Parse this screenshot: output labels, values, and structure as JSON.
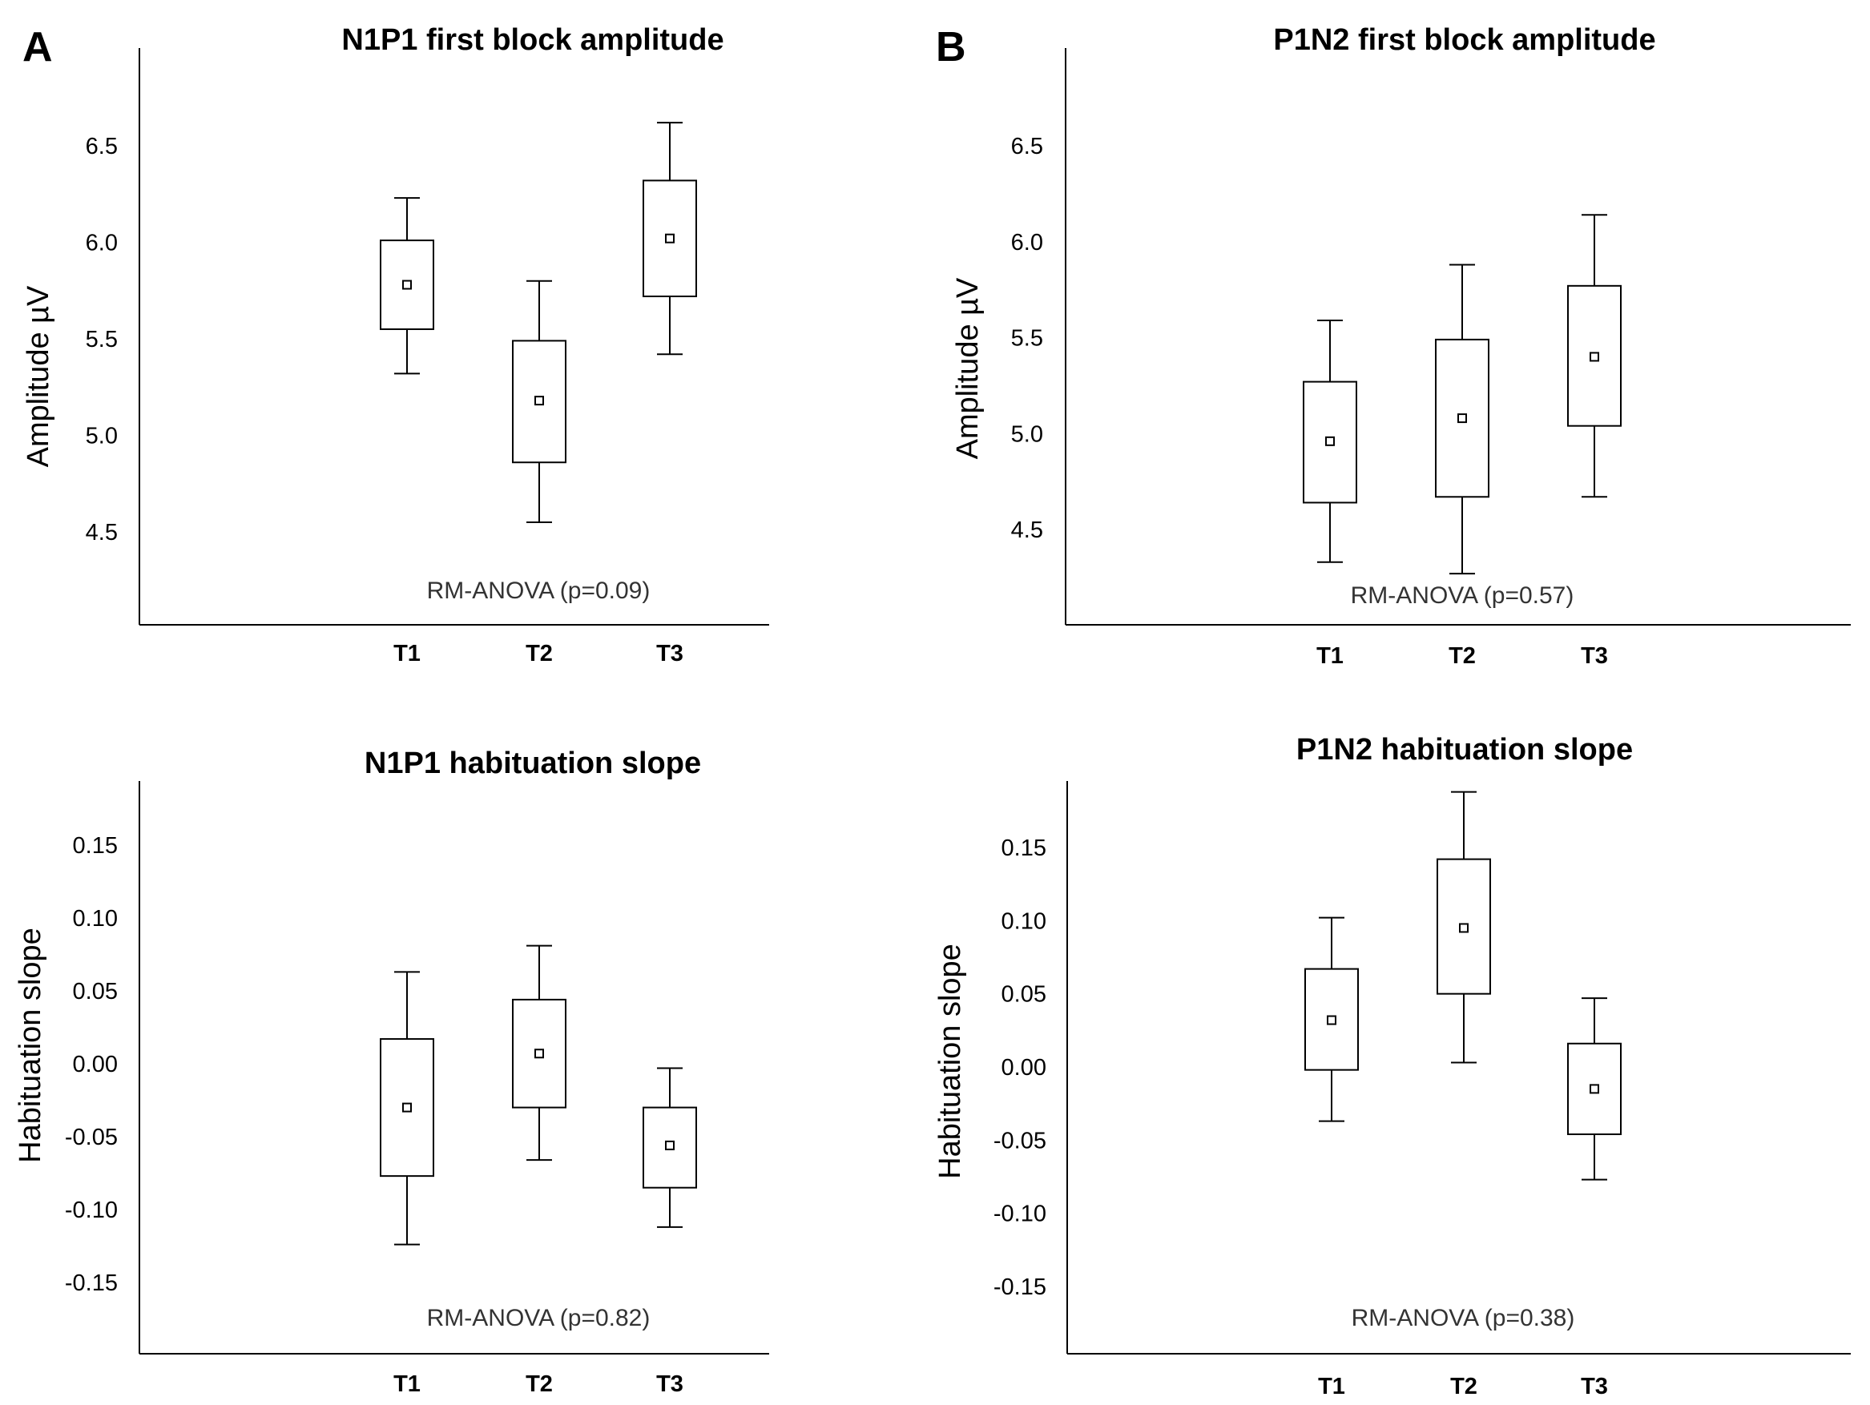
{
  "panel_labels": [
    "A",
    "B"
  ],
  "chart_data": [
    {
      "type": "box",
      "panel": "A",
      "title": "N1P1 first block amplitude",
      "ylabel": "Amplitude µV",
      "xlabel": "",
      "ylim": [
        4.0,
        7.0
      ],
      "yticks": [
        "4.5",
        "5.0",
        "5.5",
        "6.0",
        "6.5"
      ],
      "categories": [
        "T1",
        "T2",
        "T3"
      ],
      "series": [
        {
          "category": "T1",
          "mean": 5.78,
          "box_low": 5.55,
          "box_high": 6.01,
          "whisker_low": 5.32,
          "whisker_high": 6.23
        },
        {
          "category": "T2",
          "mean": 5.18,
          "box_low": 4.86,
          "box_high": 5.49,
          "whisker_low": 4.55,
          "whisker_high": 5.8
        },
        {
          "category": "T3",
          "mean": 6.02,
          "box_low": 5.72,
          "box_high": 6.32,
          "whisker_low": 5.42,
          "whisker_high": 6.62
        }
      ],
      "annotation": "RM-ANOVA (p=0.09)"
    },
    {
      "type": "box",
      "panel": "B",
      "title": "P1N2 first block amplitude",
      "ylabel": "Amplitude µV",
      "xlabel": "",
      "ylim": [
        4.0,
        7.0
      ],
      "yticks": [
        "4.5",
        "5.0",
        "5.5",
        "6.0",
        "6.5"
      ],
      "categories": [
        "T1",
        "T2",
        "T3"
      ],
      "series": [
        {
          "category": "T1",
          "mean": 4.96,
          "box_low": 4.64,
          "box_high": 5.27,
          "whisker_low": 4.33,
          "whisker_high": 5.59
        },
        {
          "category": "T2",
          "mean": 5.08,
          "box_low": 4.67,
          "box_high": 5.49,
          "whisker_low": 4.27,
          "whisker_high": 5.88
        },
        {
          "category": "T3",
          "mean": 5.4,
          "box_low": 5.04,
          "box_high": 5.77,
          "whisker_low": 4.67,
          "whisker_high": 6.14
        }
      ],
      "annotation": "RM-ANOVA (p=0.57)"
    },
    {
      "type": "box",
      "panel": "A",
      "title": "N1P1 habituation slope",
      "ylabel": "Habituation slope",
      "xlabel": "",
      "ylim": [
        -0.195,
        0.195
      ],
      "yticks": [
        "-0.15",
        "-0.10",
        "-0.05",
        "0.00",
        "0.05",
        "0.10",
        "0.15"
      ],
      "categories": [
        "T1",
        "T2",
        "T3"
      ],
      "series": [
        {
          "category": "T1",
          "mean": -0.03,
          "box_low": -0.077,
          "box_high": 0.017,
          "whisker_low": -0.124,
          "whisker_high": 0.063
        },
        {
          "category": "T2",
          "mean": 0.007,
          "box_low": -0.03,
          "box_high": 0.044,
          "whisker_low": -0.066,
          "whisker_high": 0.081
        },
        {
          "category": "T3",
          "mean": -0.056,
          "box_low": -0.085,
          "box_high": -0.03,
          "whisker_low": -0.112,
          "whisker_high": -0.003
        }
      ],
      "annotation": "RM-ANOVA (p=0.82)"
    },
    {
      "type": "box",
      "panel": "B",
      "title": "P1N2 habituation slope",
      "ylabel": "Habituation slope",
      "xlabel": "",
      "ylim": [
        -0.195,
        0.195
      ],
      "yticks": [
        "-0.15",
        "-0.10",
        "-0.05",
        "0.00",
        "0.05",
        "0.10",
        "0.15"
      ],
      "categories": [
        "T1",
        "T2",
        "T3"
      ],
      "series": [
        {
          "category": "T1",
          "mean": 0.032,
          "box_low": -0.002,
          "box_high": 0.067,
          "whisker_low": -0.037,
          "whisker_high": 0.102
        },
        {
          "category": "T2",
          "mean": 0.095,
          "box_low": 0.05,
          "box_high": 0.142,
          "whisker_low": 0.003,
          "whisker_high": 0.188
        },
        {
          "category": "T3",
          "mean": -0.015,
          "box_low": -0.046,
          "box_high": 0.016,
          "whisker_low": -0.077,
          "whisker_high": 0.047
        }
      ],
      "annotation": "RM-ANOVA (p=0.38)"
    }
  ]
}
